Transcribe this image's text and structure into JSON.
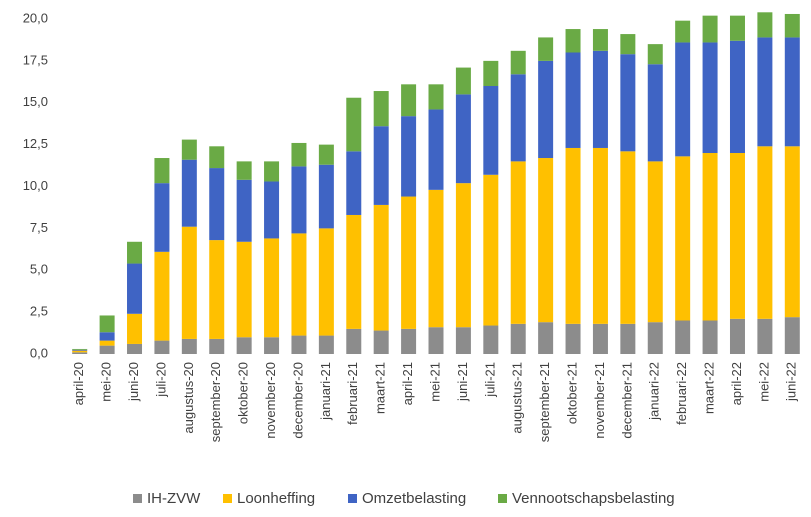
{
  "chart_data": {
    "type": "stacked_bar",
    "categories": [
      "april-20",
      "mei-20",
      "juni-20",
      "juli-20",
      "augustus-20",
      "september-20",
      "oktober-20",
      "november-20",
      "december-20",
      "januari-21",
      "februari-21",
      "maart-21",
      "april-21",
      "mei-21",
      "juni-21",
      "juli-21",
      "augustus-21",
      "september-21",
      "oktober-21",
      "november-21",
      "december-21",
      "januari-22",
      "februari-22",
      "maart-22",
      "april-22",
      "mei-22",
      "juni-22"
    ],
    "series": [
      {
        "name": "IH-ZVW",
        "color": "#8c8c8c",
        "values": [
          0.1,
          0.5,
          0.6,
          0.8,
          0.9,
          0.9,
          1.0,
          1.0,
          1.1,
          1.1,
          1.5,
          1.4,
          1.5,
          1.6,
          1.6,
          1.7,
          1.8,
          1.9,
          1.8,
          1.8,
          1.8,
          1.9,
          2.0,
          2.0,
          2.1,
          2.1,
          2.2
        ]
      },
      {
        "name": "Loonheffing",
        "color": "#ffc000",
        "values": [
          0.1,
          0.3,
          1.8,
          5.3,
          6.7,
          5.9,
          5.7,
          5.9,
          6.1,
          6.4,
          6.8,
          7.5,
          7.9,
          8.2,
          8.6,
          9.0,
          9.7,
          9.8,
          10.5,
          10.5,
          10.3,
          9.6,
          9.8,
          10.0,
          9.9,
          10.3,
          10.2
        ]
      },
      {
        "name": "Omzetbelasting",
        "color": "#3f64c4",
        "values": [
          0.05,
          0.5,
          3.0,
          4.1,
          4.0,
          4.3,
          3.7,
          3.4,
          4.0,
          3.8,
          3.8,
          4.7,
          4.8,
          4.8,
          5.3,
          5.3,
          5.2,
          5.8,
          5.7,
          5.8,
          5.8,
          5.8,
          6.8,
          6.6,
          6.7,
          6.5,
          6.5
        ]
      },
      {
        "name": "Vennootschapsbelasting",
        "color": "#6aaa45",
        "values": [
          0.05,
          1.0,
          1.3,
          1.5,
          1.2,
          1.3,
          1.1,
          1.2,
          1.4,
          1.2,
          3.2,
          2.1,
          1.9,
          1.5,
          1.6,
          1.5,
          1.4,
          1.4,
          1.4,
          1.3,
          1.2,
          1.2,
          1.3,
          1.6,
          1.5,
          1.5,
          1.4
        ]
      }
    ],
    "ylim": [
      0,
      20.5
    ],
    "yticks": [
      {
        "value": 0,
        "label": "0,0"
      },
      {
        "value": 2.5,
        "label": "2,5"
      },
      {
        "value": 5,
        "label": "5,0"
      },
      {
        "value": 7.5,
        "label": "7,5"
      },
      {
        "value": 10,
        "label": "10,0"
      },
      {
        "value": 12.5,
        "label": "12,5"
      },
      {
        "value": 15,
        "label": "15,0"
      },
      {
        "value": 17.5,
        "label": "17,5"
      },
      {
        "value": 20,
        "label": "20,0"
      }
    ],
    "legend": "bottom"
  }
}
